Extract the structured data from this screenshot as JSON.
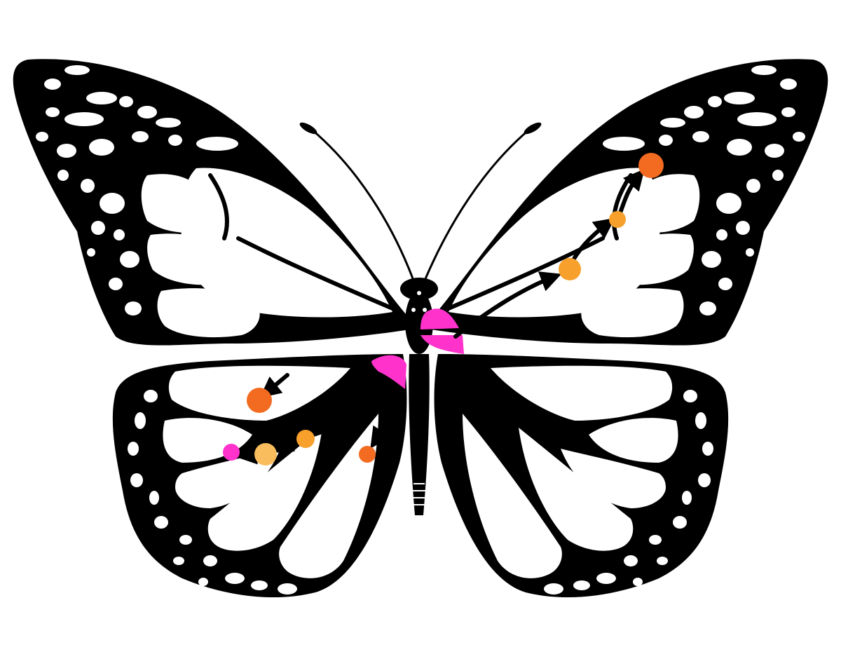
{
  "illustration": {
    "subject": "butterfly-icon",
    "outline_color": "#000000",
    "background_color": "#ffffff"
  },
  "highlights": {
    "color": "#ff33cc",
    "regions": [
      "forewing-base-right",
      "hindwing-base-left"
    ]
  },
  "markers": {
    "colors": {
      "dark_orange": "#f26b21",
      "orange": "#f7a12c",
      "light_orange": "#f9bd5d",
      "magenta": "#ff33cc"
    },
    "points": [
      {
        "id": "rf-1",
        "wing": "right-forewing",
        "color": "orange"
      },
      {
        "id": "rf-2",
        "wing": "right-forewing",
        "color": "orange"
      },
      {
        "id": "rf-3",
        "wing": "right-forewing",
        "color": "dark_orange"
      },
      {
        "id": "lh-1",
        "wing": "left-hindwing",
        "color": "orange"
      },
      {
        "id": "lh-2",
        "wing": "left-hindwing",
        "color": "light_orange"
      },
      {
        "id": "lh-3",
        "wing": "left-hindwing",
        "color": "magenta"
      },
      {
        "id": "lh-4",
        "wing": "left-hindwing",
        "color": "dark_orange"
      },
      {
        "id": "lh-5",
        "wing": "left-hindwing",
        "color": "dark_orange"
      }
    ]
  }
}
